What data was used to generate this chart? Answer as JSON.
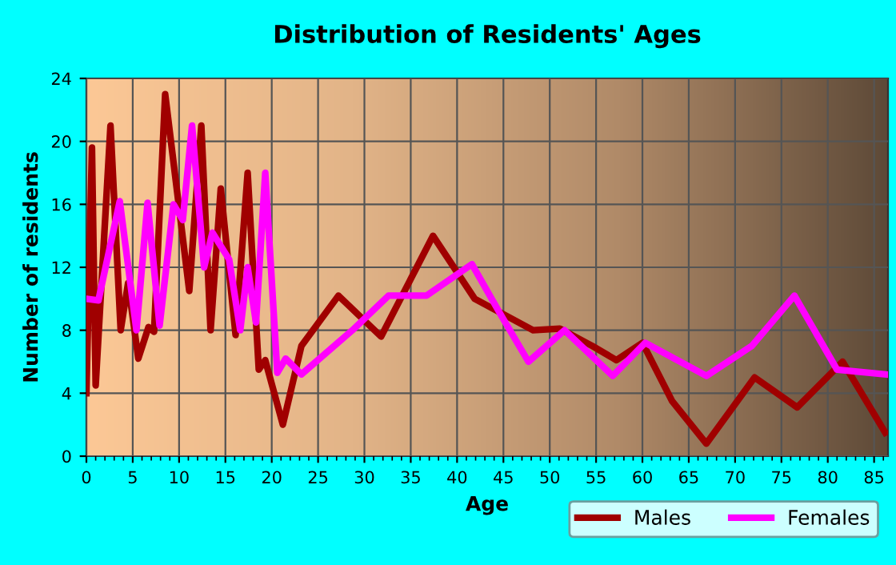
{
  "chart_data": {
    "type": "line",
    "title": "Distribution of Residents' Ages",
    "xlabel": "Age",
    "ylabel": "Number of residents",
    "xlim": [
      0,
      86.5
    ],
    "xticks": [
      0,
      5,
      10,
      15,
      20,
      25,
      30,
      35,
      40,
      45,
      50,
      55,
      60,
      65,
      70,
      75,
      80,
      85
    ],
    "ylim": [
      0,
      24
    ],
    "yticks": [
      0,
      4,
      8,
      12,
      16,
      20,
      24
    ],
    "grid": true,
    "legend": "bottom right",
    "marker": "none",
    "line_style": "solid",
    "series": [
      {
        "name": "Males",
        "color": "#a00000",
        "x": [
          0,
          0.6,
          1,
          2.6,
          3.7,
          4.5,
          5.6,
          6.7,
          7.3,
          8.5,
          11.1,
          12.4,
          13.4,
          14.5,
          16.1,
          17.4,
          18.6,
          19.3,
          21.2,
          23.2,
          27.2,
          31.8,
          37.4,
          41.9,
          48.2,
          51.1,
          54.6,
          57.2,
          60,
          63.2,
          66.9,
          72.1,
          76.7,
          81.6,
          86.2
        ],
        "values": [
          4,
          19.6,
          4.5,
          21,
          8,
          11,
          6.2,
          8.2,
          7.9,
          23,
          10.5,
          21,
          8,
          17,
          7.7,
          18,
          5.5,
          6.1,
          2,
          7,
          10.2,
          7.6,
          14,
          10,
          8,
          8.1,
          7,
          6.1,
          7.2,
          3.5,
          0.8,
          5,
          3.1,
          6,
          1.5
        ]
      },
      {
        "name": "Females",
        "color": "#ff00ff",
        "x": [
          0,
          1.3,
          3.6,
          5.4,
          6.6,
          7.9,
          9.4,
          10.4,
          11.4,
          12.7,
          13.6,
          15.4,
          16.6,
          17.4,
          18.3,
          19.3,
          20.6,
          21.5,
          23.2,
          28.7,
          32.6,
          36.7,
          41.6,
          44.7,
          47.7,
          51.6,
          56.8,
          60.3,
          66.9,
          71.8,
          76.4,
          81,
          86.2
        ],
        "values": [
          10,
          9.9,
          16.2,
          8,
          16.1,
          8.3,
          16,
          15,
          21,
          12,
          14.2,
          12.5,
          8,
          12,
          8.5,
          18,
          5.3,
          6.2,
          5.2,
          8,
          10.2,
          10.2,
          12.2,
          9,
          6,
          8,
          5.1,
          7.2,
          5.1,
          7,
          10.2,
          5.5,
          5.2
        ]
      }
    ]
  }
}
